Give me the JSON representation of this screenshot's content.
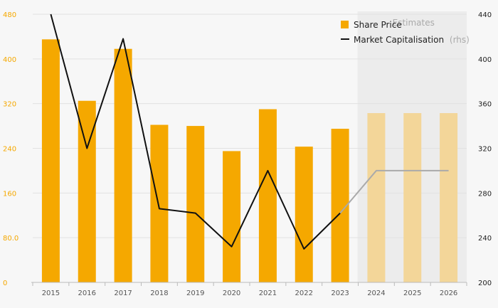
{
  "chart_data": {
    "type": "bar",
    "categories": [
      "2015",
      "2016",
      "2017",
      "2018",
      "2019",
      "2020",
      "2021",
      "2022",
      "2023",
      "2024",
      "2025",
      "2026"
    ],
    "series": [
      {
        "name": "Share Price",
        "kind": "bar",
        "axis": "left",
        "values": [
          435,
          325,
          418,
          282,
          280,
          235,
          310,
          243,
          275,
          303,
          303,
          303
        ],
        "estimate_from_index": 9,
        "color": "#f5a800",
        "estimate_color": "#f3d699"
      },
      {
        "name": "Market Capitalisation",
        "name_suffix": "(rhs)",
        "kind": "line",
        "axis": "right",
        "values": [
          440,
          320,
          418,
          266,
          262,
          232,
          300,
          230,
          262,
          300,
          300,
          300
        ],
        "estimate_from_index": 8,
        "color": "#111111",
        "estimate_color": "#aaaaaa"
      }
    ],
    "y_left": {
      "ticks": [
        "0",
        "80.0",
        "160",
        "240",
        "320",
        "400",
        "480"
      ],
      "range": [
        0,
        480
      ]
    },
    "y_right": {
      "ticks": [
        "200",
        "240",
        "280",
        "320",
        "360",
        "400",
        "440"
      ],
      "range": [
        200,
        440
      ]
    },
    "estimates_label": "Estimates",
    "estimate_start_category": "2024",
    "legend_position": "top-right",
    "grid": true,
    "title": "",
    "xlabel": "",
    "ylabel": ""
  }
}
